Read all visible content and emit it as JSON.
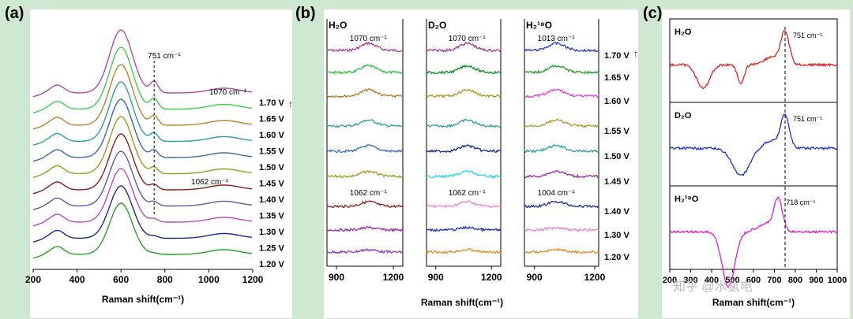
{
  "page": {
    "background": "#cfe8d2"
  },
  "watermark": "知乎 @水氢电",
  "chart_data": [
    {
      "id": "a",
      "panel_label": "(a)",
      "type": "line",
      "xlabel": "Raman shift(cm⁻¹)",
      "xlim": [
        200,
        1200
      ],
      "xticks": [
        "200",
        "400",
        "600",
        "800",
        "1000",
        "1200"
      ],
      "series": [
        {
          "name": "1.70 V",
          "color": "#b04aa0"
        },
        {
          "name": "1.65 V",
          "color": "#3ed14a"
        },
        {
          "name": "1.60 V",
          "color": "#b8842e"
        },
        {
          "name": "1.55 V",
          "color": "#2a9e9e"
        },
        {
          "name": "1.50 V",
          "color": "#3c68a8"
        },
        {
          "name": "1.45 V",
          "color": "#9a9a22"
        },
        {
          "name": "1.40 V",
          "color": "#8a1e1e"
        },
        {
          "name": "1.35 V",
          "color": "#5a5aa8"
        },
        {
          "name": "1.30 V",
          "color": "#b84ac8"
        },
        {
          "name": "1.25 V",
          "color": "#1a2a90"
        },
        {
          "name": "1.20 V",
          "color": "#28a028"
        }
      ],
      "annotations": [
        "751 cm⁻¹",
        "1070 cm⁻¹",
        "1062 cm⁻¹"
      ],
      "peaks": {
        "main": 600,
        "minor": 310,
        "shoulder": 751,
        "broad": 1070
      }
    },
    {
      "id": "b",
      "panel_label": "(b)",
      "type": "line",
      "xlabel": "Raman shift(cm⁻¹)",
      "subpanels": [
        {
          "title": "H₂O",
          "xlim": [
            850,
            1250
          ],
          "xticks": [
            "900",
            "1200"
          ],
          "annotations": [
            "1070 cm⁻¹",
            "1062 cm⁻¹"
          ],
          "peak": 1070
        },
        {
          "title": "D₂O",
          "xlim": [
            850,
            1250
          ],
          "xticks": [
            "900",
            "1200"
          ],
          "annotations": [
            "1070 cm⁻¹",
            "1062 cm⁻¹"
          ],
          "peak": 1070
        },
        {
          "title": "H₂¹⁸O",
          "xlim": [
            850,
            1220
          ],
          "xticks": [
            "900",
            "1200"
          ],
          "annotations": [
            "1013 cm⁻¹",
            "1004 cm⁻¹"
          ],
          "peak": 1010
        }
      ],
      "voltages": [
        "1.70 V",
        "1.65 V",
        "1.60 V",
        "1.55 V",
        "1.50 V",
        "1.45 V",
        "1.40 V",
        "1.30 V",
        "1.20 V"
      ],
      "colors": [
        [
          "#a8328e",
          "#30c040",
          "#b8782a",
          "#2a9e9e",
          "#3c6ab8",
          "#a89c28",
          "#8a1e1e",
          "#9a2aa8",
          "#8a3ab8"
        ],
        [
          "#a8328e",
          "#1a8a2a",
          "#a89c28",
          "#2a9e9e",
          "#1a2a90",
          "#30d8e0",
          "#f080d0",
          "#2030c0",
          "#e08a2a"
        ],
        [
          "#2a3ad0",
          "#2a9a2a",
          "#e040d0",
          "#a89c28",
          "#2a9e9e",
          "#9a2aa8",
          "#1a2a90",
          "#f080d0",
          "#e08a2a"
        ]
      ]
    },
    {
      "id": "c",
      "panel_label": "(c)",
      "type": "line",
      "xlabel": "Raman shift(cm⁻¹)",
      "xlim": [
        200,
        1000
      ],
      "xticks": [
        "200",
        "300",
        "400",
        "500",
        "600",
        "700",
        "800",
        "900",
        "1000"
      ],
      "dashed_line_at": 751,
      "subpanels": [
        {
          "title": "H₂O",
          "annotation": "751 cm⁻¹",
          "color": "#e02020"
        },
        {
          "title": "D₂O",
          "annotation": "751 cm⁻¹",
          "color": "#2030d0"
        },
        {
          "title": "H₂¹⁸O",
          "annotation": "718 cm⁻¹",
          "color": "#e020d0"
        }
      ]
    }
  ]
}
